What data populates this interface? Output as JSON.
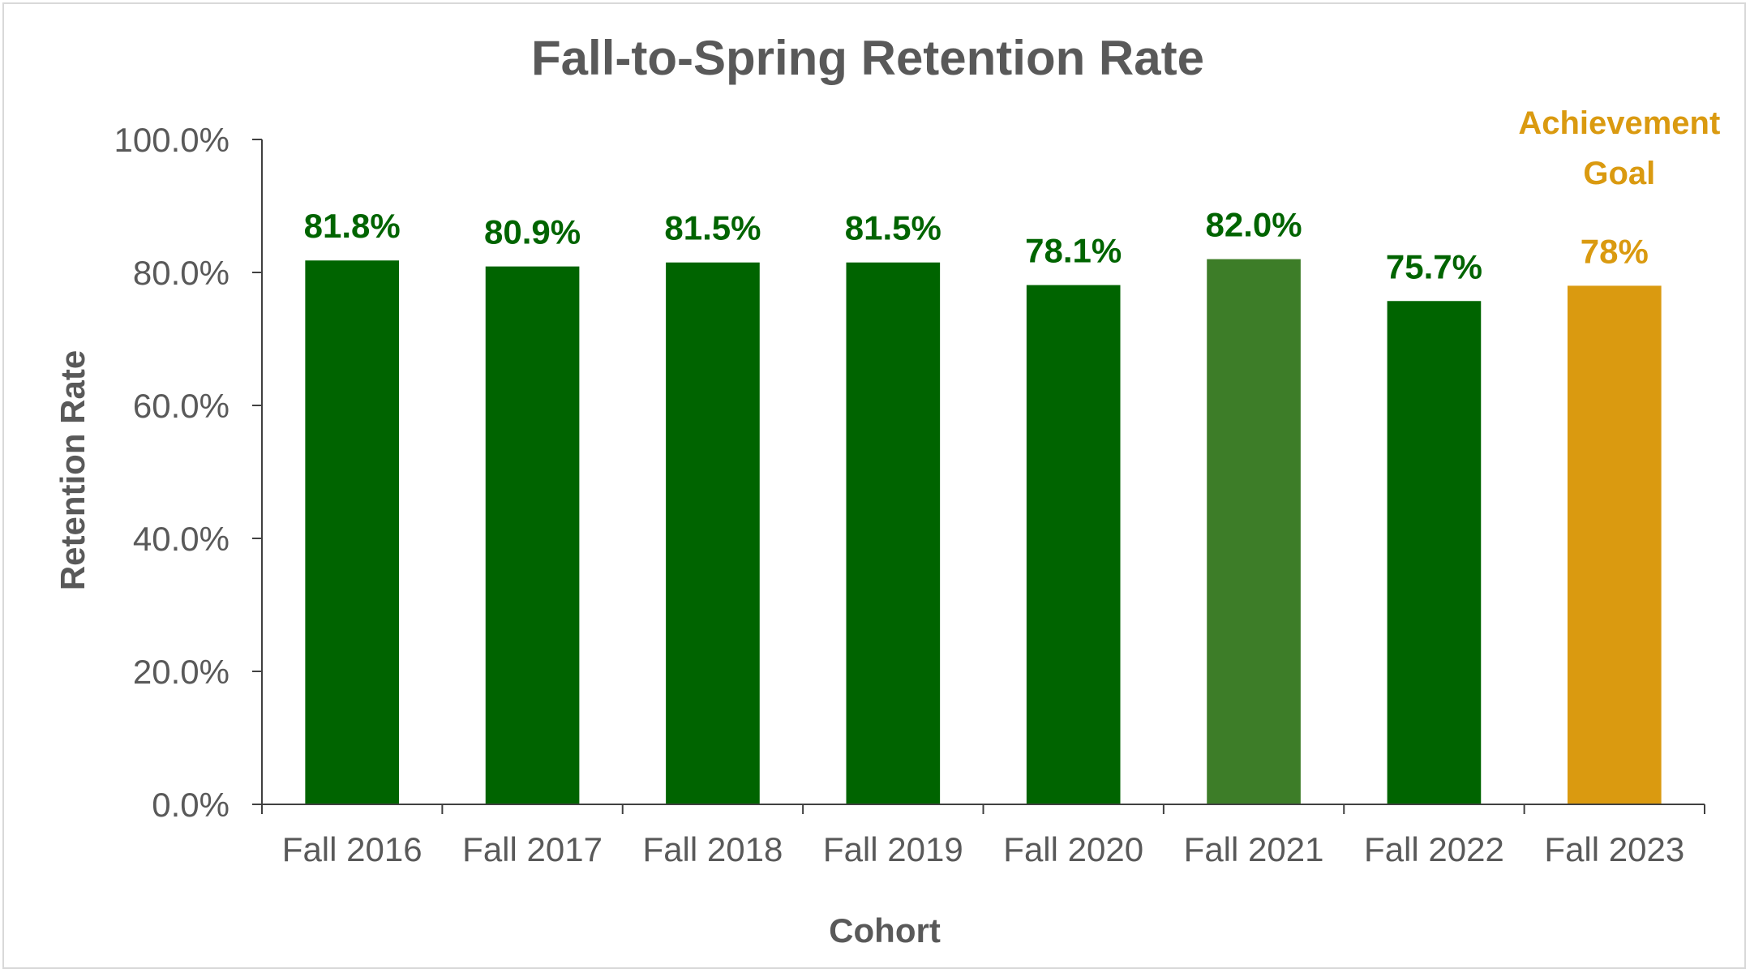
{
  "chart_data": {
    "type": "bar",
    "title": "Fall-to-Spring Retention Rate",
    "xlabel": "Cohort",
    "ylabel": "Retention Rate",
    "ylim": [
      0,
      100
    ],
    "yticks": [
      "0.0%",
      "20.0%",
      "40.0%",
      "60.0%",
      "80.0%",
      "100.0%"
    ],
    "ytick_values": [
      0,
      20,
      40,
      60,
      80,
      100
    ],
    "categories": [
      "Fall 2016",
      "Fall 2017",
      "Fall 2018",
      "Fall 2019",
      "Fall 2020",
      "Fall 2021",
      "Fall 2022",
      "Fall 2023"
    ],
    "values": [
      81.8,
      80.9,
      81.5,
      81.5,
      78.1,
      82.0,
      75.7,
      78
    ],
    "data_labels": [
      "81.8%",
      "80.9%",
      "81.5%",
      "81.5%",
      "78.1%",
      "82.0%",
      "75.7%",
      "78%"
    ],
    "bar_colors": [
      "#006400",
      "#006400",
      "#006400",
      "#006400",
      "#006400",
      "#3d7d28",
      "#006400",
      "#da9a10"
    ],
    "label_colors": [
      "#006400",
      "#006400",
      "#006400",
      "#006400",
      "#006400",
      "#006400",
      "#006400",
      "#da9a10"
    ],
    "annotation": {
      "lines": [
        "Achievement",
        "Goal"
      ],
      "category": "Fall 2023",
      "color": "#da9a10"
    },
    "grid": false,
    "legend": "none"
  }
}
